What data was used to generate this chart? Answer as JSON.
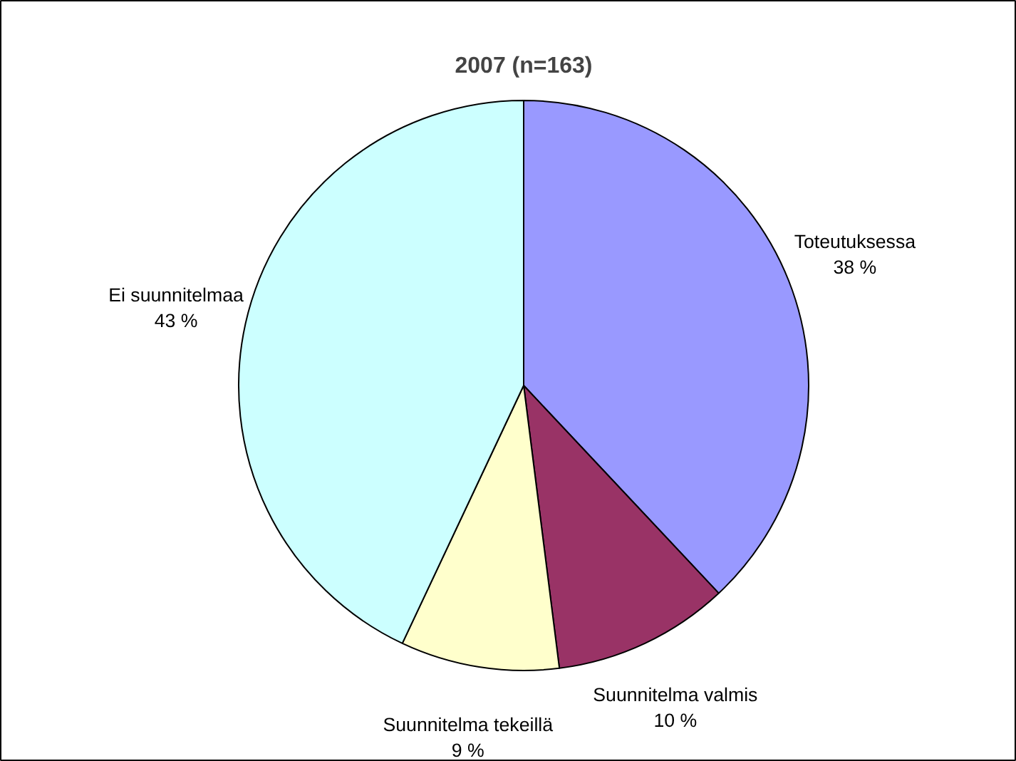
{
  "chart_data": {
    "type": "pie",
    "title": "2007 (n=163)",
    "categories": [
      "Toteutuksessa",
      "Suunnitelma valmis",
      "Suunnitelma tekeillä",
      "Ei suunnitelmaa"
    ],
    "values": [
      38,
      10,
      9,
      43
    ],
    "value_labels": [
      "38 %",
      "10 %",
      "9 %",
      "43 %"
    ],
    "colors": [
      "#9999ff",
      "#993366",
      "#ffffcc",
      "#ccffff"
    ]
  }
}
